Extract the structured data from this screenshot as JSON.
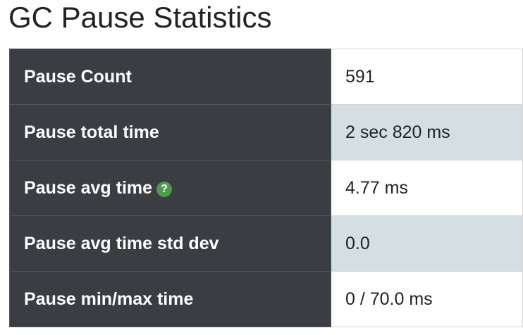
{
  "header": {
    "title": "GC Pause Statistics"
  },
  "table": {
    "rows": [
      [
        "Pause Count",
        "591"
      ],
      [
        "Pause total time",
        "2 sec 820 ms"
      ],
      [
        "Pause avg time",
        "4.77 ms"
      ],
      [
        "Pause avg time std dev",
        "0.0"
      ],
      [
        "Pause min/max time",
        "0 / 70.0 ms"
      ]
    ],
    "help_icon": "?"
  }
}
